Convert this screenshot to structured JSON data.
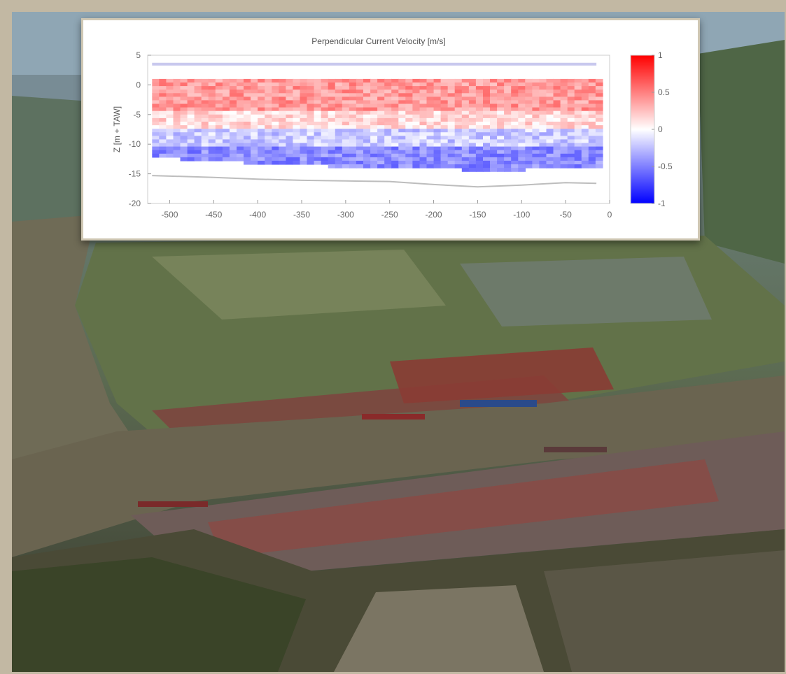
{
  "photo": {
    "description_icon": "aerial-port-photo-icon",
    "colors": {
      "water": "#6f6a55",
      "land": "#5f6e45",
      "dyke": "#2e3a22",
      "containers": "#8a3c34"
    }
  },
  "chart_data": {
    "type": "heatmap",
    "title": "Perpendicular Current Velocity [m/s]",
    "xlabel": "",
    "ylabel": "Z [m + TAW]",
    "xlim": [
      -525,
      0
    ],
    "ylim": [
      -20,
      5
    ],
    "x_ticks": [
      -500,
      -450,
      -400,
      -350,
      -300,
      -250,
      -200,
      -150,
      -100,
      -50,
      0
    ],
    "y_ticks": [
      5,
      0,
      -5,
      -10,
      -15,
      -20
    ],
    "colorbar": {
      "range": [
        -1,
        1
      ],
      "ticks": [
        1,
        0.5,
        0,
        -0.5,
        -1
      ],
      "colormap": [
        "#0000ff",
        "#ffffff",
        "#ff0000"
      ]
    },
    "surface_line_z": 3.5,
    "data_x_range": [
      -520,
      -15
    ],
    "data_z_top": 1,
    "layers": [
      {
        "z_top": 1,
        "z_bottom": -4,
        "mean_velocity": 0.4
      },
      {
        "z_top": -4,
        "z_bottom": -7,
        "mean_velocity": 0.15
      },
      {
        "z_top": -7,
        "z_bottom": -10,
        "mean_velocity": -0.2
      },
      {
        "z_top": -10,
        "z_bottom": -14,
        "mean_velocity": -0.45
      }
    ],
    "bed_profile": {
      "x": [
        -520,
        -450,
        -400,
        -350,
        -300,
        -250,
        -200,
        -150,
        -100,
        -50,
        -15
      ],
      "z": [
        -15.3,
        -15.6,
        -15.9,
        -16.1,
        -16.2,
        -16.3,
        -16.8,
        -17.2,
        -16.9,
        -16.5,
        -16.6
      ]
    },
    "data_bottom": {
      "x": [
        -520,
        -450,
        -400,
        -350,
        -300,
        -250,
        -200,
        -150,
        -100,
        -50,
        -15
      ],
      "z": [
        -12.0,
        -12.5,
        -13.0,
        -13.3,
        -13.5,
        -13.6,
        -13.8,
        -14.2,
        -14.0,
        -13.6,
        -13.5
      ]
    }
  }
}
